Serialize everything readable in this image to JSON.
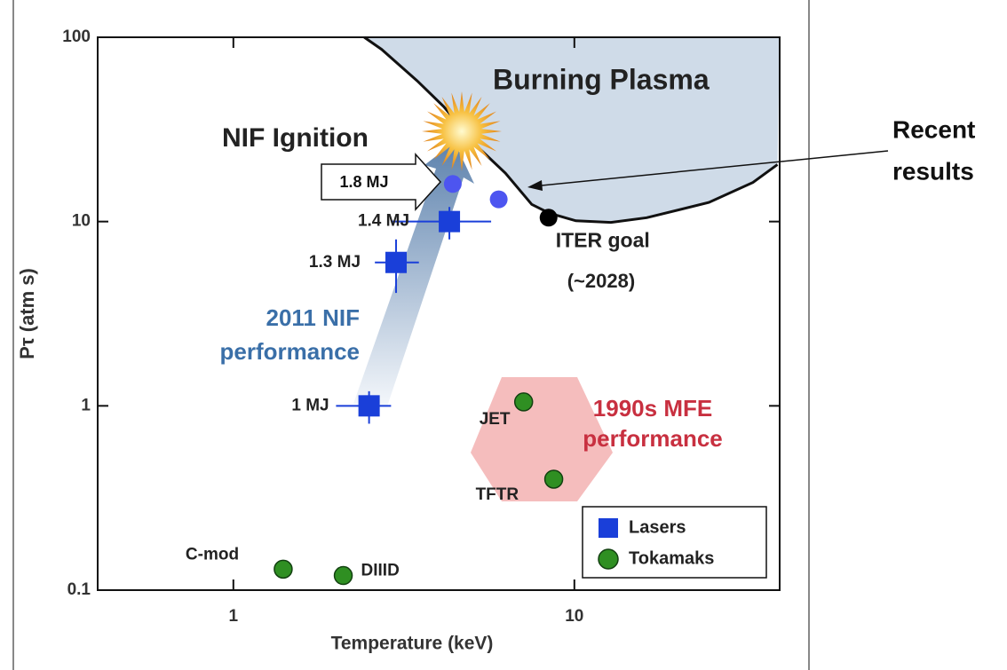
{
  "chart_data": {
    "type": "scatter",
    "xlabel": "Temperature (keV)",
    "ylabel": "Pτ (atm s)",
    "log_x": true,
    "log_y": true,
    "xlim": [
      0.4,
      40
    ],
    "ylim": [
      0.1,
      100
    ],
    "xticks": [
      1,
      10
    ],
    "yticks": [
      0.1,
      1,
      10,
      100
    ],
    "legend": "lower right",
    "series": [
      {
        "name": "Lasers",
        "marker": "square",
        "color": "#1a3fd9",
        "x": [
          2.5,
          3.0,
          4.3
        ],
        "values": [
          1.0,
          6,
          10
        ],
        "xerr": [
          [
            0.5,
            0.4
          ],
          [
            0.4,
            0.5
          ],
          [
            1.4,
            1.4
          ]
        ],
        "yerr": [
          [
            0.2,
            0.2
          ],
          [
            1.9,
            2
          ],
          [
            2,
            2
          ]
        ],
        "labels": [
          "1 MJ",
          "1.3 MJ",
          "1.4 MJ"
        ]
      },
      {
        "name": "Tokamaks",
        "marker": "circle",
        "color": "#2f8f22",
        "x": [
          7.1,
          8.7,
          1.4,
          2.1
        ],
        "values": [
          1.05,
          0.4,
          0.13,
          0.12
        ],
        "labels": [
          "JET",
          "TFTR",
          "C-mod",
          "DIIID"
        ]
      }
    ],
    "markers": [
      {
        "x": [
          4.4,
          6
        ],
        "values": [
          16,
          13.2
        ],
        "color": "#4d55f0"
      },
      {
        "name": "ITER goal",
        "note": "(~2028)",
        "x": [
          8.4
        ],
        "values": [
          10.5
        ],
        "color": "#000000"
      }
    ],
    "boundary": {
      "color": "#cfdbe8",
      "x": [
        2.42,
        2.72,
        3.46,
        4.14,
        5.25,
        6.28,
        7.5,
        8.46,
        10.1,
        12.8,
        16.3,
        24.8,
        33.4,
        39.4
      ],
      "values": [
        100,
        86,
        58,
        42,
        25,
        18.3,
        12.4,
        11.1,
        10.1,
        9.9,
        10.5,
        12.7,
        16.3,
        20.4
      ]
    },
    "annotations": [
      {
        "text": "Burning Plasma"
      },
      {
        "text": "NIF Ignition"
      },
      {
        "text": "1.8 MJ"
      },
      {
        "lines": [
          "2011 NIF",
          "performance"
        ],
        "color": "#3a6fa8"
      },
      {
        "lines": [
          "1990s MFE",
          "performance"
        ],
        "color": "#c83040"
      },
      {
        "lines": [
          "Recent",
          "results"
        ]
      }
    ]
  }
}
